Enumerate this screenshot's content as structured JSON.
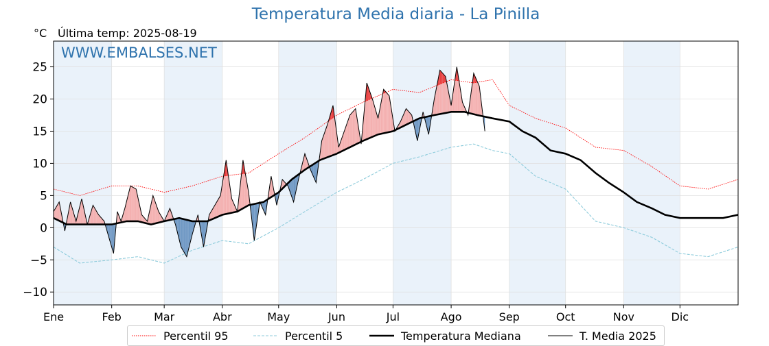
{
  "header": {
    "title": "Temperatura Media diaria - La Pinilla",
    "unit": "°C",
    "last_temp": "Última temp: 2025-08-19",
    "watermark": "WWW.EMBALSES.NET"
  },
  "legend": {
    "p95": "Percentil 95",
    "p5": "Percentil 5",
    "median": "Temperatura Mediana",
    "current": "T. Media 2025"
  },
  "colors": {
    "title": "#2f73ad",
    "p95": "#ff0000",
    "p5": "#8ccbdb",
    "median": "#000000",
    "current": "#000000",
    "above_fill": "#f4b0b0",
    "above_p95_fill": "#e84040",
    "below_fill": "#6f98c4",
    "month_band": "#eaf2fa"
  },
  "chart_data": {
    "type": "line",
    "title": "Temperatura Media diaria - La Pinilla",
    "ylabel": "°C",
    "xlim": [
      1,
      366
    ],
    "ylim": [
      -12,
      29
    ],
    "yticks": [
      -10,
      -5,
      0,
      5,
      10,
      15,
      20,
      25
    ],
    "grid": true,
    "legend_position": "bottom",
    "months": [
      "Ene",
      "Feb",
      "Mar",
      "Abr",
      "May",
      "Jun",
      "Jul",
      "Ago",
      "Sep",
      "Oct",
      "Nov",
      "Dic"
    ],
    "month_start_day": [
      1,
      32,
      60,
      91,
      121,
      152,
      182,
      213,
      244,
      274,
      305,
      335
    ],
    "series": [
      {
        "name": "Percentil 95",
        "style": "dotted",
        "x": [
          1,
          15,
          32,
          46,
          60,
          75,
          91,
          105,
          121,
          135,
          152,
          166,
          182,
          196,
          213,
          225,
          235,
          244,
          258,
          274,
          290,
          305,
          320,
          335,
          350,
          366
        ],
        "values": [
          6.0,
          5.0,
          6.5,
          6.5,
          5.5,
          6.5,
          8.0,
          8.5,
          11.5,
          14.0,
          17.5,
          19.5,
          21.5,
          21.0,
          23.0,
          22.5,
          23.0,
          19.0,
          17.0,
          15.5,
          12.5,
          12.0,
          9.5,
          6.5,
          6.0,
          7.5
        ]
      },
      {
        "name": "Percentil 5",
        "style": "dashed",
        "x": [
          1,
          15,
          32,
          46,
          60,
          75,
          91,
          105,
          121,
          135,
          152,
          166,
          182,
          196,
          213,
          225,
          235,
          244,
          258,
          274,
          290,
          305,
          320,
          335,
          350,
          366
        ],
        "values": [
          -3.0,
          -5.5,
          -5.0,
          -4.5,
          -5.5,
          -3.5,
          -2.0,
          -2.5,
          0.0,
          2.5,
          5.5,
          7.5,
          10.0,
          11.0,
          12.5,
          13.0,
          12.0,
          11.5,
          8.0,
          6.0,
          1.0,
          0.0,
          -1.5,
          -4.0,
          -4.5,
          -3.0
        ]
      },
      {
        "name": "Temperatura Mediana",
        "style": "solid-thick",
        "x": [
          1,
          8,
          15,
          22,
          32,
          40,
          46,
          53,
          60,
          68,
          75,
          83,
          91,
          99,
          105,
          113,
          121,
          128,
          135,
          143,
          152,
          159,
          166,
          174,
          182,
          189,
          196,
          204,
          213,
          220,
          227,
          235,
          244,
          251,
          258,
          266,
          274,
          282,
          290,
          297,
          305,
          312,
          320,
          327,
          335,
          342,
          350,
          358,
          366
        ],
        "values": [
          1.5,
          0.5,
          0.5,
          0.5,
          0.5,
          1.0,
          1.0,
          0.5,
          1.0,
          1.5,
          1.0,
          1.0,
          2.0,
          2.5,
          3.5,
          4.0,
          5.5,
          7.5,
          9.0,
          10.5,
          11.5,
          12.5,
          13.5,
          14.5,
          15.0,
          16.0,
          17.0,
          17.5,
          18.0,
          18.0,
          17.5,
          17.0,
          16.5,
          15.0,
          14.0,
          12.0,
          11.5,
          10.5,
          8.5,
          7.0,
          5.5,
          4.0,
          3.0,
          2.0,
          1.5,
          1.5,
          1.5,
          1.5,
          2.0
        ]
      },
      {
        "name": "T. Media 2025",
        "style": "solid",
        "x": [
          1,
          4,
          7,
          10,
          13,
          16,
          19,
          22,
          25,
          28,
          31,
          33,
          35,
          37,
          39,
          42,
          45,
          48,
          51,
          54,
          57,
          60,
          63,
          66,
          69,
          72,
          75,
          78,
          81,
          84,
          87,
          90,
          93,
          96,
          99,
          102,
          105,
          108,
          111,
          114,
          117,
          120,
          123,
          126,
          129,
          132,
          135,
          138,
          141,
          144,
          147,
          150,
          153,
          156,
          159,
          162,
          165,
          168,
          171,
          174,
          177,
          180,
          183,
          186,
          189,
          192,
          195,
          198,
          201,
          204,
          207,
          210,
          213,
          216,
          219,
          222,
          225,
          228,
          231
        ],
        "values": [
          2.5,
          4.0,
          -0.5,
          4.0,
          1.0,
          4.5,
          0.5,
          3.5,
          2.0,
          1.0,
          -2.0,
          -4.0,
          2.5,
          1.0,
          3.0,
          6.5,
          6.0,
          2.0,
          1.0,
          5.0,
          2.5,
          1.0,
          3.0,
          0.5,
          -3.0,
          -4.5,
          -1.0,
          2.0,
          -3.0,
          2.0,
          3.5,
          5.0,
          10.5,
          4.5,
          2.5,
          10.5,
          5.5,
          -2.0,
          4.0,
          2.0,
          8.0,
          3.5,
          7.5,
          6.5,
          4.0,
          8.0,
          11.5,
          9.0,
          7.0,
          13.5,
          16.0,
          19.0,
          12.5,
          15.0,
          17.5,
          18.5,
          13.0,
          22.5,
          20.0,
          17.0,
          21.5,
          20.5,
          15.0,
          16.5,
          18.5,
          17.5,
          13.5,
          18.0,
          14.5,
          20.0,
          24.5,
          23.5,
          19.0,
          25.0,
          19.5,
          17.5,
          24.0,
          22.0,
          15.0
        ]
      }
    ]
  }
}
